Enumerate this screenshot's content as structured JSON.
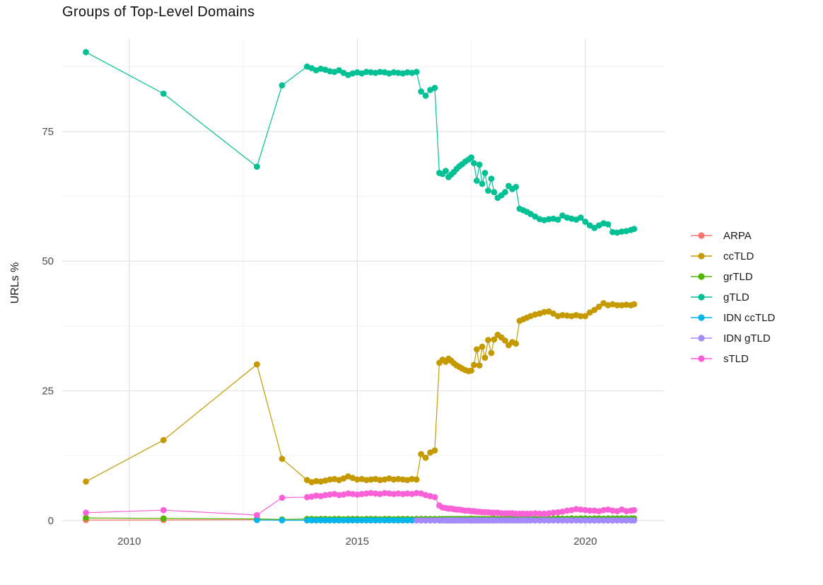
{
  "chart_data": {
    "type": "line",
    "title": "Groups of Top-Level Domains",
    "xlabel": "",
    "ylabel": "URLs %",
    "grid": true,
    "legend_position": "right",
    "xlim": [
      2008.53,
      2021.74
    ],
    "ylim": [
      -1.25,
      92.85
    ],
    "x_ticks": {
      "major": [
        2010,
        2015,
        2020
      ],
      "minor": [
        2012.5,
        2017.5
      ],
      "labels": [
        "2010",
        "2015",
        "2020"
      ]
    },
    "y_ticks": {
      "major": [
        0,
        25,
        50,
        75
      ],
      "minor": [
        12.5,
        37.5,
        62.5,
        87.5
      ],
      "labels": [
        "0",
        "25",
        "50",
        "75"
      ]
    },
    "x": [
      2009.05,
      2010.75,
      2012.8,
      2013.35,
      2013.9,
      2014.0,
      2014.1,
      2014.2,
      2014.3,
      2014.4,
      2014.5,
      2014.6,
      2014.7,
      2014.8,
      2014.9,
      2015.0,
      2015.1,
      2015.2,
      2015.3,
      2015.4,
      2015.5,
      2015.6,
      2015.7,
      2015.8,
      2015.9,
      2016.0,
      2016.1,
      2016.2,
      2016.3,
      2016.4,
      2016.5,
      2016.6,
      2016.7,
      2016.8,
      2016.87,
      2016.94,
      2017.0,
      2017.06,
      2017.12,
      2017.18,
      2017.24,
      2017.3,
      2017.37,
      2017.44,
      2017.5,
      2017.56,
      2017.62,
      2017.68,
      2017.74,
      2017.8,
      2017.87,
      2017.94,
      2018.0,
      2018.08,
      2018.16,
      2018.24,
      2018.32,
      2018.4,
      2018.48,
      2018.56,
      2018.64,
      2018.72,
      2018.8,
      2018.9,
      2019.0,
      2019.1,
      2019.2,
      2019.3,
      2019.4,
      2019.5,
      2019.6,
      2019.7,
      2019.8,
      2019.9,
      2020.0,
      2020.1,
      2020.2,
      2020.3,
      2020.4,
      2020.5,
      2020.6,
      2020.7,
      2020.8,
      2020.9,
      2021.0,
      2021.07
    ],
    "series": [
      {
        "name": "ARPA",
        "color": "#F8766D",
        "values": [
          0.1,
          0.1,
          0.15,
          0.1,
          0.05,
          0.05,
          0.05,
          0.05,
          0.05,
          0.05,
          0.05,
          0.05,
          0.05,
          0.05,
          0.05,
          0.05,
          0.05,
          0.05,
          0.05,
          0.05,
          0.05,
          0.05,
          0.05,
          0.05,
          0.05,
          0.05,
          0.05,
          0.05,
          0.05,
          0.05,
          0.05,
          0.05,
          0.05,
          0.05,
          0.05,
          0.05,
          0.05,
          0.05,
          0.05,
          0.05,
          0.05,
          0.05,
          0.05,
          0.05,
          0.05,
          0.05,
          0.05,
          0.05,
          0.05,
          0.05,
          0.05,
          0.05,
          0.05,
          0.05,
          0.05,
          0.05,
          0.05,
          0.05,
          0.05,
          0.05,
          0.05,
          0.05,
          0.05,
          0.05,
          0.05,
          0.05,
          0.05,
          0.05,
          0.05,
          0.05,
          0.05,
          0.05,
          0.05,
          0.05,
          0.05,
          0.05,
          0.05,
          0.05,
          0.05,
          0.05,
          0.05,
          0.05,
          0.05,
          0.05,
          0.05,
          0.05
        ]
      },
      {
        "name": "ccTLD",
        "color": "#C49A00",
        "values": [
          7.5,
          15.5,
          30.1,
          11.9,
          7.8,
          7.4,
          7.6,
          7.5,
          7.7,
          7.9,
          8.0,
          7.8,
          8.1,
          8.5,
          8.2,
          7.9,
          8.0,
          7.8,
          7.9,
          8.0,
          7.8,
          7.9,
          8.1,
          7.9,
          8.0,
          7.9,
          7.8,
          8.0,
          7.9,
          12.8,
          12.1,
          13.1,
          13.5,
          30.4,
          31.0,
          30.6,
          31.2,
          30.8,
          30.3,
          29.9,
          29.6,
          29.3,
          29.0,
          28.8,
          28.9,
          30.0,
          33.0,
          29.9,
          33.5,
          31.4,
          34.8,
          32.3,
          34.9,
          35.8,
          35.3,
          34.7,
          33.8,
          34.4,
          34.1,
          38.5,
          38.8,
          39.1,
          39.4,
          39.7,
          39.9,
          40.2,
          40.3,
          39.9,
          39.4,
          39.6,
          39.5,
          39.4,
          39.6,
          39.4,
          39.4,
          40.1,
          40.6,
          41.2,
          41.9,
          41.5,
          41.7,
          41.5,
          41.5,
          41.6,
          41.5,
          41.7
        ]
      },
      {
        "name": "grTLD",
        "color": "#53B400",
        "values": [
          0.5,
          0.4,
          0.3,
          0.2,
          0.3,
          0.3,
          0.25,
          0.3,
          0.3,
          0.25,
          0.3,
          0.3,
          0.25,
          0.3,
          0.3,
          0.3,
          0.25,
          0.3,
          0.3,
          0.3,
          0.25,
          0.3,
          0.3,
          0.25,
          0.3,
          0.3,
          0.3,
          0.25,
          0.3,
          0.3,
          0.3,
          0.3,
          0.3,
          0.3,
          0.3,
          0.3,
          0.3,
          0.3,
          0.3,
          0.3,
          0.3,
          0.3,
          0.3,
          0.3,
          0.35,
          0.3,
          0.3,
          0.3,
          0.3,
          0.3,
          0.3,
          0.3,
          0.35,
          0.3,
          0.3,
          0.35,
          0.3,
          0.35,
          0.3,
          0.35,
          0.35,
          0.3,
          0.35,
          0.35,
          0.35,
          0.3,
          0.35,
          0.35,
          0.4,
          0.35,
          0.35,
          0.4,
          0.35,
          0.4,
          0.4,
          0.35,
          0.4,
          0.4,
          0.35,
          0.4,
          0.4,
          0.4,
          0.4,
          0.4,
          0.4,
          0.4
        ]
      },
      {
        "name": "gTLD",
        "color": "#00C094",
        "values": [
          90.3,
          82.3,
          68.2,
          83.9,
          87.5,
          87.2,
          86.8,
          87.1,
          86.9,
          86.6,
          86.5,
          86.8,
          86.3,
          85.9,
          86.2,
          86.4,
          86.2,
          86.5,
          86.4,
          86.3,
          86.5,
          86.4,
          86.2,
          86.4,
          86.3,
          86.2,
          86.4,
          86.3,
          86.5,
          82.7,
          81.9,
          83.0,
          83.4,
          67.0,
          66.8,
          67.4,
          66.2,
          66.7,
          67.2,
          67.8,
          68.3,
          68.7,
          69.2,
          69.6,
          70.0,
          68.9,
          65.5,
          68.6,
          64.9,
          67.0,
          63.6,
          65.9,
          63.3,
          62.2,
          62.7,
          63.3,
          64.5,
          63.9,
          64.3,
          60.1,
          59.8,
          59.5,
          59.1,
          58.6,
          58.1,
          57.9,
          58.1,
          58.2,
          58.0,
          58.8,
          58.4,
          58.2,
          58.0,
          58.4,
          57.6,
          56.9,
          56.4,
          56.9,
          57.3,
          57.1,
          55.6,
          55.5,
          55.7,
          55.8,
          56.0,
          56.2
        ]
      },
      {
        "name": "IDN ccTLD",
        "color": "#00B6EB",
        "values": [
          null,
          null,
          0.1,
          0.05,
          0.05,
          0.05,
          0.05,
          0.05,
          0.05,
          0.05,
          0.05,
          0.05,
          0.05,
          0.05,
          0.05,
          0.05,
          0.05,
          0.05,
          0.05,
          0.05,
          0.05,
          0.05,
          0.05,
          0.05,
          0.05,
          0.05,
          0.05,
          0.05,
          0.05,
          0.05,
          0.05,
          0.05,
          0.05,
          0.05,
          0.05,
          0.05,
          0.05,
          0.05,
          0.05,
          0.05,
          0.05,
          0.05,
          0.05,
          0.05,
          0.05,
          0.05,
          0.05,
          0.05,
          0.05,
          0.05,
          0.05,
          0.05,
          0.05,
          0.05,
          0.05,
          0.05,
          0.05,
          0.05,
          0.05,
          0.05,
          0.05,
          0.05,
          0.05,
          0.05,
          0.05,
          0.05,
          0.05,
          0.05,
          0.05,
          0.05,
          0.05,
          0.05,
          0.05,
          0.05,
          0.05,
          0.05,
          0.05,
          0.05,
          0.05,
          0.05,
          0.05,
          0.05,
          0.05,
          0.05,
          0.05,
          0.05
        ]
      },
      {
        "name": "IDN gTLD",
        "color": "#A58AFF",
        "values": [
          null,
          null,
          null,
          null,
          null,
          null,
          null,
          null,
          null,
          null,
          null,
          null,
          null,
          null,
          null,
          null,
          null,
          null,
          null,
          null,
          null,
          null,
          null,
          null,
          null,
          null,
          null,
          null,
          0.02,
          0.02,
          0.02,
          0.02,
          0.02,
          0.02,
          0.02,
          0.02,
          0.02,
          0.02,
          0.02,
          0.02,
          0.02,
          0.02,
          0.02,
          0.02,
          0.02,
          0.02,
          0.02,
          0.02,
          0.02,
          0.02,
          0.02,
          0.02,
          0.02,
          0.02,
          0.02,
          0.02,
          0.02,
          0.02,
          0.02,
          0.02,
          0.02,
          0.02,
          0.02,
          0.02,
          0.02,
          0.02,
          0.02,
          0.02,
          0.02,
          0.02,
          0.02,
          0.02,
          0.02,
          0.02,
          0.02,
          0.02,
          0.02,
          0.02,
          0.02,
          0.02,
          0.02,
          0.02,
          0.02,
          0.02,
          0.02,
          0.02
        ]
      },
      {
        "name": "sTLD",
        "color": "#FB61D7",
        "values": [
          1.5,
          2.0,
          1.05,
          4.4,
          4.5,
          4.6,
          4.8,
          4.7,
          4.9,
          5.0,
          5.1,
          4.9,
          5.0,
          5.2,
          5.1,
          5.0,
          5.1,
          5.2,
          5.3,
          5.2,
          5.1,
          5.3,
          5.2,
          5.1,
          5.2,
          5.1,
          5.2,
          5.1,
          5.3,
          5.2,
          4.9,
          4.7,
          4.5,
          2.9,
          2.5,
          2.4,
          2.3,
          2.3,
          2.2,
          2.1,
          2.1,
          2.0,
          1.9,
          1.9,
          1.8,
          1.8,
          1.7,
          1.7,
          1.6,
          1.6,
          1.6,
          1.5,
          1.5,
          1.5,
          1.4,
          1.4,
          1.4,
          1.4,
          1.3,
          1.3,
          1.3,
          1.3,
          1.3,
          1.4,
          1.3,
          1.3,
          1.4,
          1.5,
          1.6,
          1.7,
          1.9,
          2.0,
          2.2,
          2.1,
          2.0,
          1.9,
          1.9,
          1.8,
          2.0,
          2.1,
          1.9,
          1.8,
          2.1,
          1.8,
          1.9,
          2.0
        ]
      }
    ],
    "style": {
      "grid_major_color": "#e4e4e4",
      "grid_minor_color": "#f0f0f0",
      "tick_label_color": "#4d4d4d",
      "point_radius": 4.4,
      "line_width": 1.2
    }
  }
}
